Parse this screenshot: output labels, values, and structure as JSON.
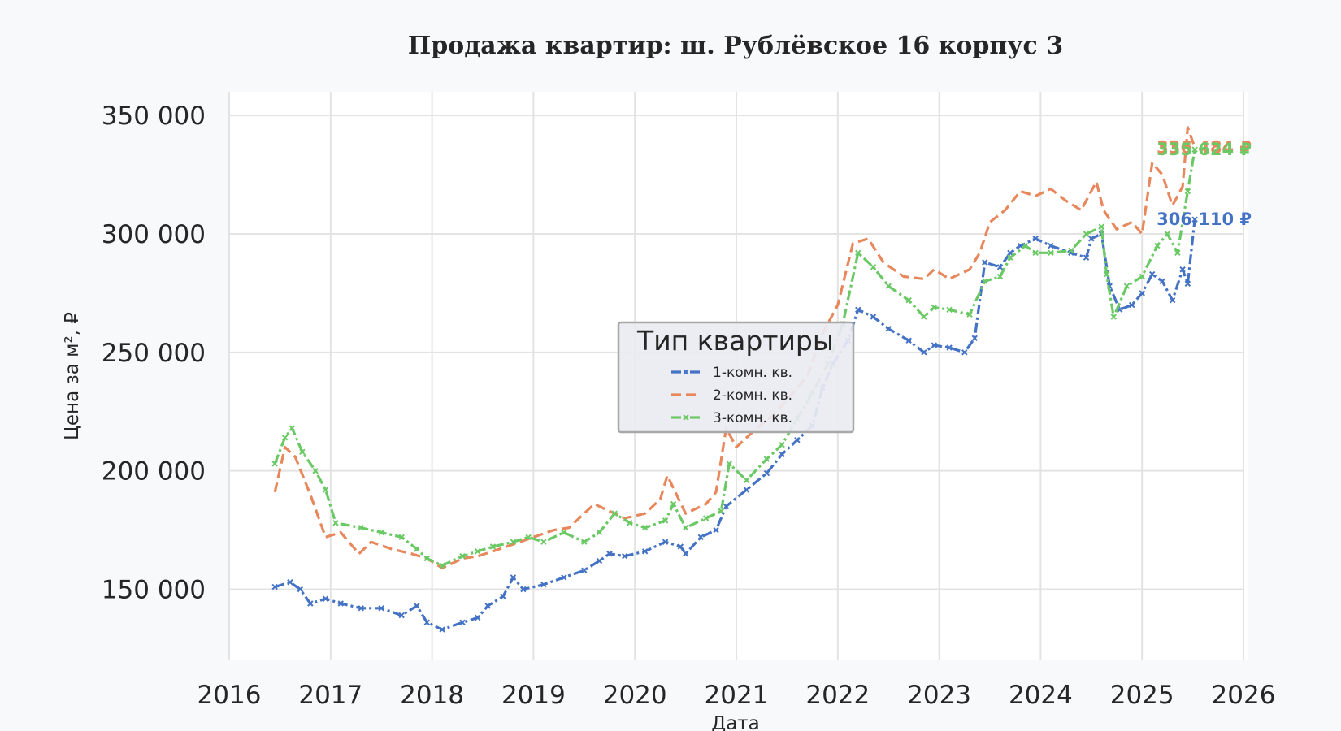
{
  "chart_data": {
    "type": "line",
    "title": "Продажа квартир: ш. Рублёвское 16 корпус 3",
    "xlabel": "Дата",
    "ylabel": "Цена за м², ₽",
    "xlim": [
      2016,
      2026
    ],
    "ylim": [
      120000,
      360000
    ],
    "x_ticks": [
      2016,
      2017,
      2018,
      2019,
      2020,
      2021,
      2022,
      2023,
      2024,
      2025,
      2026
    ],
    "x_tick_labels": [
      "2016",
      "2017",
      "2018",
      "2019",
      "2020",
      "2021",
      "2022",
      "2023",
      "2024",
      "2025",
      "2026"
    ],
    "y_ticks": [
      150000,
      200000,
      250000,
      300000,
      350000
    ],
    "y_tick_labels": [
      "150 000",
      "200 000",
      "250 000",
      "300 000",
      "350 000"
    ],
    "grid": true,
    "legend": {
      "title": "Тип квартиры",
      "placement": "center"
    },
    "series": [
      {
        "name": "1-комн. кв.",
        "color": "#4472c4",
        "line_style": "dashdot",
        "marker": "x",
        "end_label": "306 110 ₽",
        "points": [
          [
            2016.45,
            151000
          ],
          [
            2016.6,
            153000
          ],
          [
            2016.7,
            150000
          ],
          [
            2016.8,
            144000
          ],
          [
            2016.95,
            146000
          ],
          [
            2017.1,
            144000
          ],
          [
            2017.3,
            142000
          ],
          [
            2017.5,
            142000
          ],
          [
            2017.7,
            139000
          ],
          [
            2017.85,
            143000
          ],
          [
            2017.95,
            136000
          ],
          [
            2018.1,
            133000
          ],
          [
            2018.3,
            136000
          ],
          [
            2018.45,
            138000
          ],
          [
            2018.55,
            143000
          ],
          [
            2018.7,
            147000
          ],
          [
            2018.8,
            155000
          ],
          [
            2018.9,
            150000
          ],
          [
            2019.1,
            152000
          ],
          [
            2019.3,
            155000
          ],
          [
            2019.5,
            158000
          ],
          [
            2019.65,
            162000
          ],
          [
            2019.75,
            165000
          ],
          [
            2019.9,
            164000
          ],
          [
            2020.1,
            166000
          ],
          [
            2020.3,
            170000
          ],
          [
            2020.45,
            168000
          ],
          [
            2020.5,
            165000
          ],
          [
            2020.65,
            172000
          ],
          [
            2020.8,
            175000
          ],
          [
            2020.9,
            185000
          ],
          [
            2021.1,
            192000
          ],
          [
            2021.3,
            199000
          ],
          [
            2021.45,
            207000
          ],
          [
            2021.6,
            213000
          ],
          [
            2021.75,
            219000
          ],
          [
            2021.85,
            235000
          ],
          [
            2021.95,
            245000
          ],
          [
            2022.1,
            255000
          ],
          [
            2022.2,
            268000
          ],
          [
            2022.35,
            265000
          ],
          [
            2022.5,
            260000
          ],
          [
            2022.7,
            255000
          ],
          [
            2022.85,
            250000
          ],
          [
            2022.95,
            253000
          ],
          [
            2023.1,
            252000
          ],
          [
            2023.25,
            250000
          ],
          [
            2023.35,
            256000
          ],
          [
            2023.45,
            288000
          ],
          [
            2023.6,
            286000
          ],
          [
            2023.7,
            292000
          ],
          [
            2023.8,
            295000
          ],
          [
            2023.95,
            298000
          ],
          [
            2024.1,
            295000
          ],
          [
            2024.3,
            292000
          ],
          [
            2024.45,
            290000
          ],
          [
            2024.5,
            298000
          ],
          [
            2024.6,
            300000
          ],
          [
            2024.68,
            278000
          ],
          [
            2024.78,
            268000
          ],
          [
            2024.9,
            270000
          ],
          [
            2025.0,
            275000
          ],
          [
            2025.1,
            283000
          ],
          [
            2025.2,
            280000
          ],
          [
            2025.3,
            272000
          ],
          [
            2025.4,
            285000
          ],
          [
            2025.45,
            279000
          ],
          [
            2025.52,
            306110
          ]
        ]
      },
      {
        "name": "2-комн. кв.",
        "color": "#e8875c",
        "line_style": "dashed",
        "marker": "none",
        "end_label": "336 484 ₽",
        "points": [
          [
            2016.45,
            191000
          ],
          [
            2016.55,
            210000
          ],
          [
            2016.65,
            206000
          ],
          [
            2016.8,
            190000
          ],
          [
            2016.95,
            172000
          ],
          [
            2017.1,
            174000
          ],
          [
            2017.28,
            165000
          ],
          [
            2017.4,
            170000
          ],
          [
            2017.6,
            167000
          ],
          [
            2017.8,
            165000
          ],
          [
            2017.95,
            163000
          ],
          [
            2018.1,
            159000
          ],
          [
            2018.3,
            163000
          ],
          [
            2018.45,
            164000
          ],
          [
            2018.6,
            166000
          ],
          [
            2018.8,
            169000
          ],
          [
            2019.0,
            172000
          ],
          [
            2019.2,
            175000
          ],
          [
            2019.35,
            176000
          ],
          [
            2019.5,
            182000
          ],
          [
            2019.6,
            186000
          ],
          [
            2019.75,
            183000
          ],
          [
            2019.9,
            180000
          ],
          [
            2020.1,
            182000
          ],
          [
            2020.25,
            188000
          ],
          [
            2020.32,
            198000
          ],
          [
            2020.5,
            182000
          ],
          [
            2020.7,
            186000
          ],
          [
            2020.8,
            191000
          ],
          [
            2020.9,
            218000
          ],
          [
            2021.0,
            210000
          ],
          [
            2021.2,
            218000
          ],
          [
            2021.35,
            223000
          ],
          [
            2021.5,
            230000
          ],
          [
            2021.7,
            240000
          ],
          [
            2021.85,
            258000
          ],
          [
            2022.0,
            270000
          ],
          [
            2022.15,
            296000
          ],
          [
            2022.3,
            298000
          ],
          [
            2022.45,
            288000
          ],
          [
            2022.65,
            282000
          ],
          [
            2022.85,
            281000
          ],
          [
            2022.95,
            285000
          ],
          [
            2023.1,
            281000
          ],
          [
            2023.3,
            285000
          ],
          [
            2023.4,
            292000
          ],
          [
            2023.5,
            305000
          ],
          [
            2023.65,
            310000
          ],
          [
            2023.8,
            318000
          ],
          [
            2023.95,
            316000
          ],
          [
            2024.1,
            319000
          ],
          [
            2024.25,
            314000
          ],
          [
            2024.4,
            310000
          ],
          [
            2024.55,
            322000
          ],
          [
            2024.62,
            310000
          ],
          [
            2024.75,
            302000
          ],
          [
            2024.9,
            305000
          ],
          [
            2025.0,
            300000
          ],
          [
            2025.1,
            330000
          ],
          [
            2025.2,
            325000
          ],
          [
            2025.3,
            312000
          ],
          [
            2025.4,
            320000
          ],
          [
            2025.45,
            345000
          ],
          [
            2025.52,
            336484
          ]
        ]
      },
      {
        "name": "3-комн. кв.",
        "color": "#6bc965",
        "line_style": "dashdot",
        "marker": "x",
        "end_label": "335 624 ₽",
        "points": [
          [
            2016.45,
            203000
          ],
          [
            2016.55,
            214000
          ],
          [
            2016.62,
            218000
          ],
          [
            2016.72,
            208000
          ],
          [
            2016.85,
            200000
          ],
          [
            2016.95,
            192000
          ],
          [
            2017.05,
            178000
          ],
          [
            2017.3,
            176000
          ],
          [
            2017.5,
            174000
          ],
          [
            2017.7,
            172000
          ],
          [
            2017.85,
            167000
          ],
          [
            2017.95,
            163000
          ],
          [
            2018.1,
            160000
          ],
          [
            2018.3,
            164000
          ],
          [
            2018.45,
            166000
          ],
          [
            2018.6,
            168000
          ],
          [
            2018.8,
            170000
          ],
          [
            2018.95,
            172000
          ],
          [
            2019.1,
            170000
          ],
          [
            2019.3,
            174000
          ],
          [
            2019.5,
            170000
          ],
          [
            2019.65,
            174000
          ],
          [
            2019.8,
            182000
          ],
          [
            2019.95,
            178000
          ],
          [
            2020.1,
            176000
          ],
          [
            2020.3,
            179000
          ],
          [
            2020.38,
            186000
          ],
          [
            2020.5,
            176000
          ],
          [
            2020.7,
            180000
          ],
          [
            2020.85,
            183000
          ],
          [
            2020.93,
            203000
          ],
          [
            2021.1,
            196000
          ],
          [
            2021.3,
            205000
          ],
          [
            2021.45,
            211000
          ],
          [
            2021.6,
            222000
          ],
          [
            2021.75,
            233000
          ],
          [
            2021.9,
            245000
          ],
          [
            2022.05,
            262000
          ],
          [
            2022.2,
            292000
          ],
          [
            2022.35,
            286000
          ],
          [
            2022.5,
            278000
          ],
          [
            2022.7,
            272000
          ],
          [
            2022.85,
            265000
          ],
          [
            2022.95,
            269000
          ],
          [
            2023.1,
            268000
          ],
          [
            2023.3,
            266000
          ],
          [
            2023.45,
            280000
          ],
          [
            2023.6,
            282000
          ],
          [
            2023.7,
            290000
          ],
          [
            2023.85,
            295000
          ],
          [
            2023.95,
            292000
          ],
          [
            2024.1,
            292000
          ],
          [
            2024.3,
            293000
          ],
          [
            2024.45,
            300000
          ],
          [
            2024.6,
            303000
          ],
          [
            2024.65,
            283000
          ],
          [
            2024.72,
            265000
          ],
          [
            2024.85,
            278000
          ],
          [
            2025.0,
            282000
          ],
          [
            2025.15,
            295000
          ],
          [
            2025.25,
            300000
          ],
          [
            2025.35,
            292000
          ],
          [
            2025.45,
            318000
          ],
          [
            2025.52,
            335624
          ]
        ]
      }
    ]
  }
}
